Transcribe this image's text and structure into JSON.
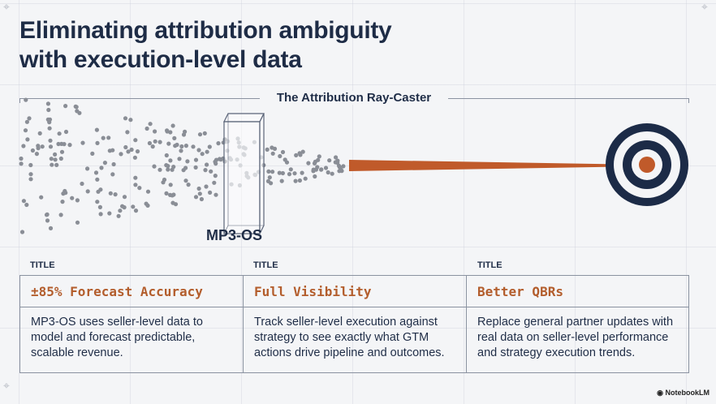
{
  "title": {
    "line1": "Eliminating attribution ambiguity",
    "line2": "with execution-level data"
  },
  "diagram": {
    "label": "The Attribution Ray-Caster",
    "prism_label": "MP3-OS",
    "accent": "#c05a2a",
    "target_color": "#1c2b47"
  },
  "columns": [
    {
      "label": "TITLE",
      "heading": "±85% Forecast Accuracy",
      "body": "MP3-OS uses seller-level data to model and forecast predictable, scalable revenue."
    },
    {
      "label": "TITLE",
      "heading": "Full Visibility",
      "body": "Track seller-level execution against strategy to see exactly what GTM actions drive pipeline and outcomes."
    },
    {
      "label": "TITLE",
      "heading": "Better QBRs",
      "body": "Replace general partner updates with real data on seller-level performance and strategy execution trends."
    }
  ],
  "branding": {
    "logo": "NotebookLM"
  }
}
